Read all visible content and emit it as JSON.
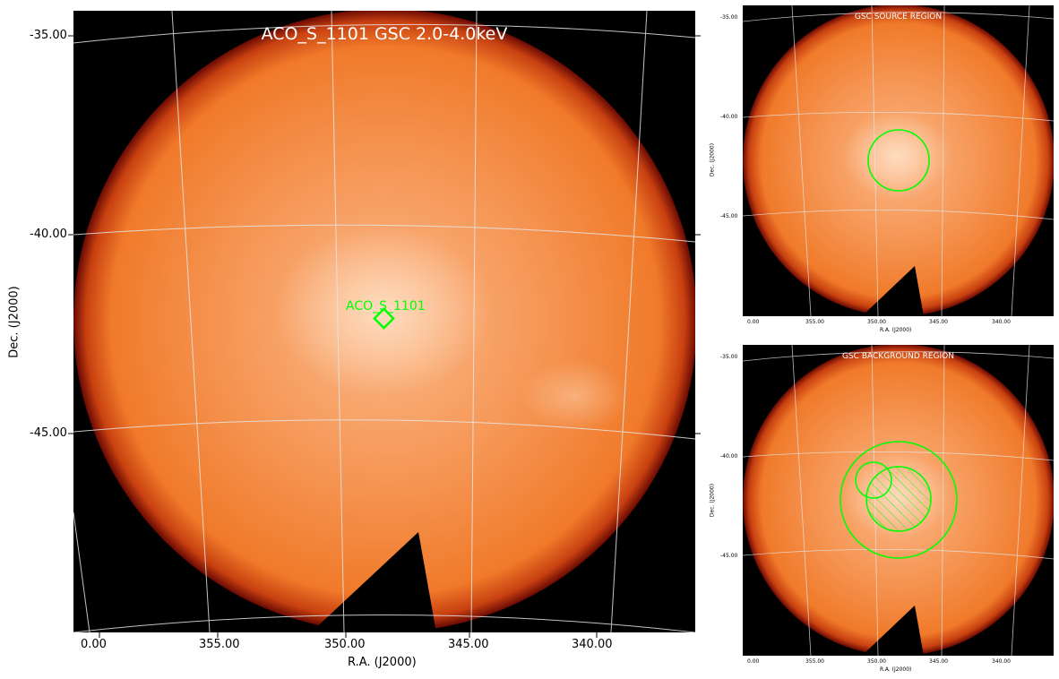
{
  "main": {
    "title": "ACO_S_1101 GSC 2.0-4.0keV",
    "source_label": "ACO_S_1101",
    "xlabel": "R.A. (J2000)",
    "ylabel": "Dec. (J2000)",
    "xticks": [
      "0.00",
      "355.00",
      "350.00",
      "345.00",
      "340.00"
    ],
    "yticks": [
      "-35.00",
      "-40.00",
      "-45.00"
    ]
  },
  "source_region": {
    "title": "GSC SOURCE REGION",
    "xlabel": "R.A. (J2000)",
    "ylabel": "Dec. (J2000)",
    "xticks": [
      "0.00",
      "355.00",
      "350.00",
      "345.00",
      "340.00"
    ],
    "yticks": [
      "-35.00",
      "-40.00",
      "-45.00"
    ]
  },
  "background_region": {
    "title": "GSC BACKGROUND REGION",
    "xlabel": "R.A. (J2000)",
    "ylabel": "Dec. (J2000)",
    "xticks": [
      "0.00",
      "355.00",
      "350.00",
      "345.00",
      "340.00"
    ],
    "yticks": [
      "-35.00",
      "-40.00",
      "-45.00"
    ]
  },
  "colors": {
    "sky_orange": "#f07a2a",
    "edge_red": "#b01808",
    "background": "#000000",
    "region_green": "#00ff00",
    "grid": "#dddddd"
  }
}
